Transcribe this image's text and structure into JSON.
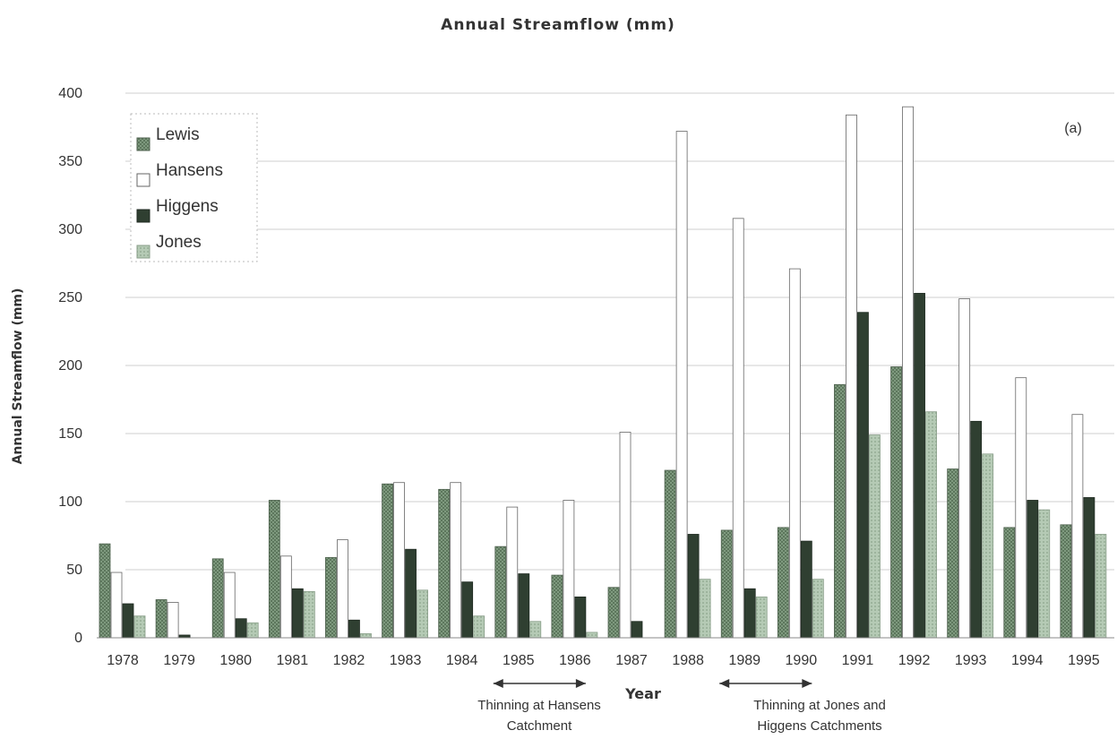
{
  "chart_data": {
    "type": "bar",
    "title": "Annual Streamflow (mm)",
    "panel_label": "(a)",
    "xlabel": "Year",
    "ylabel": "Annual Streamflow (mm)",
    "ylim": [
      0,
      400
    ],
    "yticks": [
      0,
      50,
      100,
      150,
      200,
      250,
      300,
      350,
      400
    ],
    "grid": true,
    "legend_position": "top-left",
    "categories": [
      "1978",
      "1979",
      "1980",
      "1981",
      "1982",
      "1983",
      "1984",
      "1985",
      "1986",
      "1987",
      "1988",
      "1989",
      "1990",
      "1991",
      "1992",
      "1993",
      "1994",
      "1995"
    ],
    "series": [
      {
        "name": "Lewis",
        "color": "#6e8a6e",
        "values": [
          69,
          28,
          58,
          101,
          59,
          113,
          109,
          67,
          46,
          37,
          123,
          79,
          81,
          186,
          199,
          124,
          81,
          83
        ]
      },
      {
        "name": "Hansens",
        "color": "#ffffff",
        "values": [
          48,
          26,
          48,
          60,
          72,
          114,
          114,
          96,
          101,
          151,
          372,
          308,
          271,
          384,
          390,
          249,
          191,
          164
        ]
      },
      {
        "name": "Higgens",
        "color": "#2f3f31",
        "values": [
          25,
          2,
          14,
          36,
          13,
          65,
          41,
          47,
          30,
          12,
          76,
          36,
          71,
          239,
          253,
          159,
          101,
          103
        ]
      },
      {
        "name": "Jones",
        "color": "#a8c0a8",
        "values": [
          16,
          0,
          11,
          34,
          3,
          35,
          16,
          12,
          4,
          0,
          43,
          30,
          43,
          149,
          166,
          135,
          94,
          76
        ]
      }
    ],
    "annotations": [
      {
        "id": "hansens-thinning",
        "lines": [
          "Thinning at Hansens",
          "Catchment"
        ],
        "from": "1985",
        "to": "1986"
      },
      {
        "id": "jones-higgens-thinning",
        "lines": [
          "Thinning at Jones and",
          "Higgens Catchments"
        ],
        "from": "1989",
        "to": "1990"
      }
    ]
  }
}
